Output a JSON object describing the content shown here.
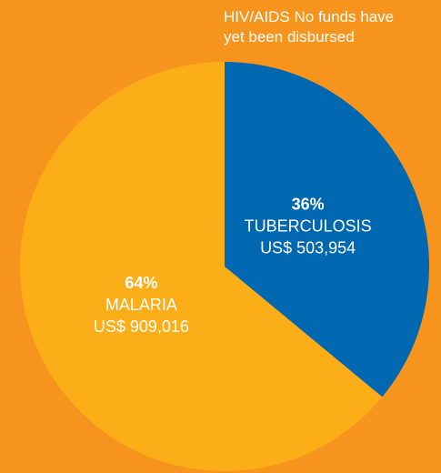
{
  "chart_data": {
    "type": "pie",
    "annotation": {
      "label": "HIV/AIDS",
      "text": "No funds have yet been disbursed"
    },
    "categories": [
      "TUBERCULOSIS",
      "MALARIA"
    ],
    "values": [
      36,
      64
    ],
    "value_labels": [
      "36%",
      "64%"
    ],
    "amounts": [
      "US$ 503,954",
      "US$ 909,016"
    ],
    "colors": [
      "#0067b1",
      "#fbae17"
    ]
  }
}
